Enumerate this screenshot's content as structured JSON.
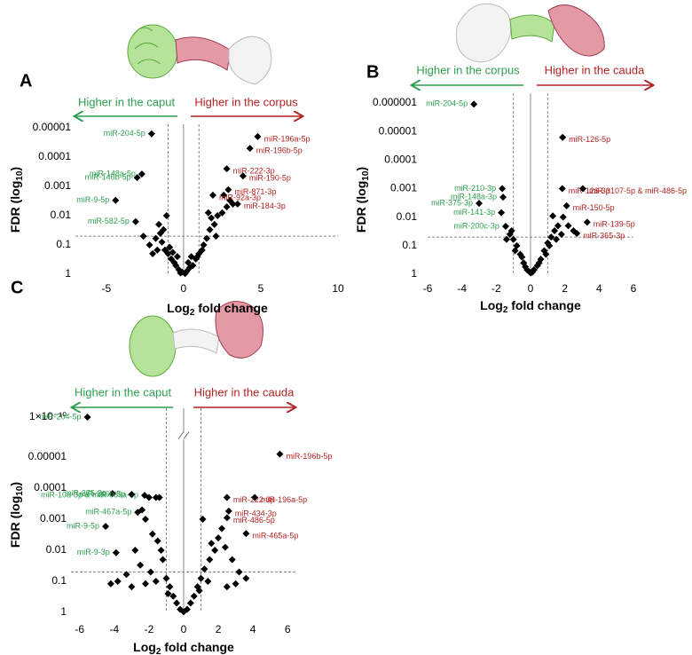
{
  "chart_data": [
    {
      "type": "scatter",
      "panel": "A",
      "left_label": "Higher in the caput",
      "right_label": "Higher in the corpus",
      "left_color": "#2e9e4f",
      "right_color": "#b22222",
      "color": "#000000",
      "xlabel": {
        "text": "Log",
        "sub": "2",
        "end": " fold change"
      },
      "ylabel": {
        "text": "FDR (log",
        "sub": "10",
        "end": ")"
      },
      "xlim": [
        -7,
        10
      ],
      "xticks": [
        -5,
        0,
        5,
        10
      ],
      "ylim": [
        1,
        1e-06
      ],
      "yticks": [
        1,
        0.1,
        0.01,
        0.001,
        0.0001,
        1e-05
      ],
      "log_scale": true,
      "fdr_threshold": 0.05,
      "fold_threshold": 1,
      "labeled": {
        "names": [
          "miR-204-5p",
          "miR-148a-5p",
          "miR-146b-5p",
          "miR-9-5p",
          "miR-582-5p",
          "miR-196a-5p",
          "miR-196b-5p",
          "miR-222-3p",
          "miR-190-5p",
          "miR-92a-3p",
          "miR-871-3p",
          "miR-184-3p"
        ],
        "x": [
          -2.07,
          -2.7,
          -3.0,
          -4.4,
          -3.1,
          4.8,
          4.3,
          2.8,
          3.85,
          1.9,
          2.9,
          3.5
        ],
        "values": [
          1.6e-05,
          0.00038,
          0.0005,
          0.003,
          0.016,
          2e-05,
          5e-05,
          0.00025,
          0.00044,
          0.002,
          0.0013,
          0.004
        ]
      },
      "points": {
        "x": [
          -1.5,
          -1.8,
          -2.2,
          -1.2,
          -1,
          -0.8,
          -0.5,
          -0.3,
          -0.6,
          -1.4,
          -1.6,
          -0.9,
          -2.6,
          -0.2,
          0.2,
          0.4,
          0.6,
          0.8,
          1,
          1.3,
          1.5,
          1.7,
          2,
          2.2,
          2.5,
          1.8,
          2.8,
          3.2,
          1.2,
          0.9,
          -1.3,
          -1.1,
          -0.7,
          0.1,
          -0.1,
          0.3,
          2.1,
          1.6,
          2.6,
          3,
          -2,
          -1.7,
          0.5,
          -0.4
        ],
        "values": [
          0.04,
          0.06,
          0.1,
          0.15,
          0.2,
          0.3,
          0.5,
          0.7,
          0.4,
          0.08,
          0.02,
          0.12,
          0.05,
          0.9,
          0.8,
          0.6,
          0.5,
          0.3,
          0.2,
          0.1,
          0.06,
          0.03,
          0.02,
          0.01,
          0.008,
          0.012,
          0.005,
          0.004,
          0.15,
          0.25,
          0.03,
          0.01,
          0.18,
          0.95,
          0.85,
          0.4,
          0.05,
          0.008,
          0.002,
          0.003,
          0.2,
          0.15,
          0.25,
          0.25
        ]
      }
    },
    {
      "type": "scatter",
      "panel": "B",
      "left_label": "Higher in the corpus",
      "right_label": "Higher in the cauda",
      "left_color": "#2e9e4f",
      "right_color": "#b22222",
      "color": "#000000",
      "xlabel": {
        "text": "Log",
        "sub": "2",
        "end": " fold change"
      },
      "ylabel": {
        "text": "FDR (log",
        "sub": "10",
        "end": ")"
      },
      "xlim": [
        -6,
        6
      ],
      "xticks": [
        -6,
        -4,
        -2,
        0,
        2,
        4,
        6
      ],
      "ylim": [
        1,
        1e-06
      ],
      "yticks": [
        1,
        0.1,
        0.01,
        0.001,
        0.0001,
        1e-05,
        1e-06
      ],
      "log_scale": true,
      "fdr_threshold": 0.05,
      "fold_threshold": 1,
      "labeled": {
        "names": [
          "miR-204-5p",
          "miR-210-3p",
          "miR-148a-3p",
          "miR-375-3p",
          "miR-141-3p",
          "miR-200c-3p",
          "miR-126-5p",
          "miR-126-3p",
          "miR-3107-5p & miR-486-5p",
          "miR-150-5p",
          "miR-139-5p",
          "miR-365-3p"
        ],
        "x": [
          -3.3,
          -1.65,
          -1.6,
          -3.0,
          -1.7,
          -1.45,
          1.87,
          1.85,
          3.05,
          2.1,
          3.3,
          2.7
        ],
        "values": [
          1.1e-06,
          0.001,
          0.002,
          0.0033,
          0.007,
          0.021,
          1.6e-05,
          0.001,
          0.001,
          0.004,
          0.015,
          0.037
        ]
      },
      "points": {
        "x": [
          -1.2,
          -1,
          -0.8,
          -0.6,
          -0.4,
          -0.2,
          0,
          0.2,
          0.4,
          0.6,
          0.8,
          1,
          1.2,
          1.4,
          1.6,
          1.9,
          2.2,
          1.1,
          0.9,
          -0.9,
          -1.4,
          -0.5,
          -0.3,
          0.1,
          0.5,
          1.5,
          1.8,
          -1.1,
          2.5,
          1.3
        ],
        "values": [
          0.04,
          0.06,
          0.1,
          0.2,
          0.4,
          0.7,
          0.9,
          0.7,
          0.5,
          0.3,
          0.15,
          0.08,
          0.05,
          0.03,
          0.02,
          0.01,
          0.02,
          0.1,
          0.2,
          0.15,
          0.06,
          0.25,
          0.55,
          0.85,
          0.4,
          0.06,
          0.04,
          0.03,
          0.03,
          0.009
        ]
      }
    },
    {
      "type": "scatter",
      "panel": "C",
      "left_label": "Higher in the caput",
      "right_label": "Higher in the cauda",
      "left_color": "#2e9e4f",
      "right_color": "#b22222",
      "color": "#000000",
      "xlabel": {
        "text": "Log",
        "sub": "2",
        "end": " fold change"
      },
      "ylabel": {
        "text": "FDR (log",
        "sub": "10",
        "end": ")"
      },
      "xlim": [
        -6.5,
        6.5
      ],
      "xticks": [
        -6,
        -4,
        -2,
        0,
        2,
        4,
        6
      ],
      "ylim": [
        1,
        1e-10
      ],
      "yticks": [
        1,
        0.1,
        0.01,
        0.001,
        0.0001,
        1e-05,
        {
          "value": 1e-10,
          "label": "1×10⁻¹⁰"
        }
      ],
      "log_scale": true,
      "axis_break": true,
      "fdr_threshold": 0.05,
      "fold_threshold": 1,
      "labeled": {
        "names": [
          "miR-204-5p",
          "miR-10a-3p & miR-669a-5p",
          "miR-375-3p",
          "miR-146b-5p",
          "miR-467a-5p",
          "miR-9-5p",
          "miR-9-3p",
          "miR-196b-5p",
          "miR-222-3p",
          "miR-196a-5p",
          "miR-434-3p",
          "miR-486-5p",
          "miR-465a-5p"
        ],
        "x": [
          -5.55,
          -2.25,
          -4.1,
          -3.0,
          -2.65,
          -4.5,
          -3.9,
          5.55,
          2.5,
          4.1,
          2.6,
          2.5,
          3.6
        ],
        "values": [
          1e-10,
          0.00017,
          0.00015,
          0.00016,
          0.0006,
          0.0017,
          0.012,
          8e-06,
          0.0002,
          0.0002,
          0.00055,
          0.0009,
          0.0029
        ]
      },
      "points": {
        "x": [
          -2,
          -1.6,
          -1.4,
          -2.4,
          -2.2,
          -1.8,
          -1.5,
          -2.8,
          -3.3,
          -3.8,
          -2.5,
          -1.9,
          -1.2,
          -1,
          -0.8,
          -0.6,
          -0.4,
          -0.2,
          0,
          0.2,
          0.4,
          0.6,
          0.8,
          1,
          1.2,
          1.5,
          1.8,
          2,
          2.2,
          1.6,
          2.4,
          2.8,
          3.2,
          3.6,
          1.4,
          -1.6,
          -2.2,
          -3,
          0.9,
          -0.9,
          2.5,
          3,
          -4.2,
          -1.3,
          1.1
        ],
        "values": [
          0.0002,
          0.0002,
          0.0002,
          0.0005,
          0.001,
          0.003,
          0.005,
          0.01,
          0.06,
          0.1,
          0.03,
          0.05,
          0.02,
          0.08,
          0.15,
          0.3,
          0.5,
          0.8,
          0.95,
          0.8,
          0.5,
          0.3,
          0.15,
          0.08,
          0.04,
          0.02,
          0.01,
          0.004,
          0.002,
          0.006,
          0.008,
          0.02,
          0.05,
          0.08,
          0.1,
          0.1,
          0.12,
          0.15,
          0.2,
          0.25,
          0.15,
          0.12,
          0.12,
          0.01,
          0.001
        ]
      }
    }
  ]
}
